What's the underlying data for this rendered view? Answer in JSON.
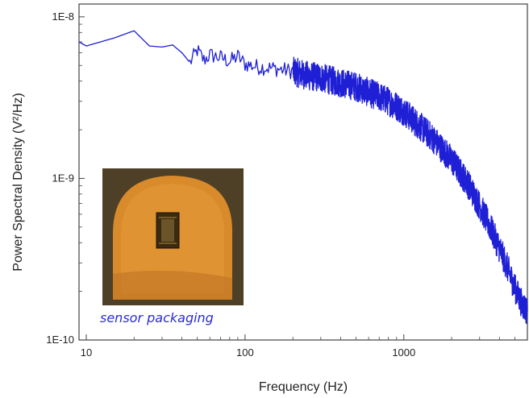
{
  "chart_data": {
    "type": "line",
    "title": "",
    "xlabel": "Frequency (Hz)",
    "ylabel": "Power Spectral Density (V²/Hz)",
    "x_scale": "log",
    "y_scale": "log",
    "xlim": [
      9,
      6000
    ],
    "ylim": [
      1e-10,
      1.2e-08
    ],
    "x_ticks": [
      {
        "value": 10,
        "label": "10"
      },
      {
        "value": 100,
        "label": "100"
      },
      {
        "value": 1000,
        "label": "1000"
      }
    ],
    "y_ticks": [
      {
        "value": 1e-10,
        "label": "1E-10"
      },
      {
        "value": 1e-09,
        "label": "1E-9"
      },
      {
        "value": 1e-08,
        "label": "1E-8"
      }
    ],
    "grid": false,
    "line_color": "#1f1fd6",
    "series": [
      {
        "x": [
          9,
          10,
          15,
          20,
          25,
          30,
          35,
          40,
          45,
          50,
          55,
          60,
          70,
          80,
          90,
          100,
          120,
          150,
          200,
          250,
          300,
          400,
          500,
          600,
          700,
          800,
          900,
          1000,
          1200,
          1500,
          2000,
          2500,
          3000,
          3500,
          4000,
          4500,
          5000,
          5500,
          6000
        ],
        "y": [
          7e-09,
          6.6e-09,
          7.4e-09,
          8.2e-09,
          6.6e-09,
          6.5e-09,
          6.7e-09,
          6e-09,
          5.2e-09,
          6.2e-09,
          5.4e-09,
          5.8e-09,
          5.6e-09,
          5.3e-09,
          5.7e-09,
          5.1e-09,
          4.9e-09,
          4.8e-09,
          4.6e-09,
          4.3e-09,
          4.2e-09,
          3.9e-09,
          3.7e-09,
          3.4e-09,
          3.2e-09,
          3e-09,
          2.8e-09,
          2.6e-09,
          2.2e-09,
          1.8e-09,
          1.3e-09,
          9.5e-10,
          6.8e-10,
          5e-10,
          3.7e-10,
          2.8e-10,
          2.1e-10,
          1.7e-10,
          1.5e-10
        ]
      }
    ],
    "inset": {
      "caption": "sensor packaging",
      "description_colors": {
        "background": "#4a3d25",
        "pad": "#d9882a",
        "chip": "#3b2d14"
      }
    }
  }
}
